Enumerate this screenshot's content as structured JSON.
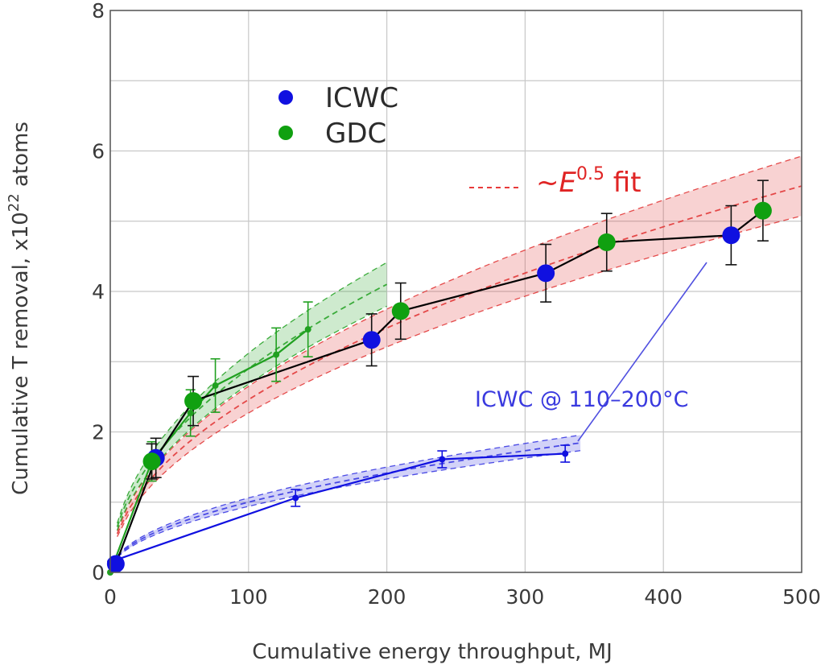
{
  "chart_data": {
    "type": "scatter",
    "xlabel": "Cumulative energy throughput, MJ",
    "ylabel_main": "Cumulative T removal, x10",
    "ylabel_exp": "22",
    "ylabel_unit": " atoms",
    "xlim": [
      0,
      500
    ],
    "ylim": [
      0,
      8
    ],
    "xticks": [
      "0",
      "100",
      "200",
      "300",
      "400",
      "500"
    ],
    "yticks": [
      "0",
      "2",
      "4",
      "6",
      "8"
    ],
    "grid": true,
    "legend_position": "upper-left",
    "legend": [
      {
        "label": "ICWC",
        "color": "#1010e0"
      },
      {
        "label": "GDC",
        "color": "#10a010"
      }
    ],
    "fit_legend": {
      "prefix": "~",
      "symbol": "E",
      "exponent": "0.5",
      "suffix": " fit",
      "color": "#e02424"
    },
    "annotation": "ICWC @ 110–200°C",
    "series": [
      {
        "name": "ICWC",
        "role": "combined-sequence-points",
        "color": "#1010e0",
        "points": [
          {
            "x": 4,
            "y": 0.12,
            "err": 0
          },
          {
            "x": 33,
            "y": 1.63,
            "err": 0.28
          },
          {
            "x": 189,
            "y": 3.31,
            "err": 0.37
          },
          {
            "x": 315,
            "y": 4.26,
            "err": 0.41
          },
          {
            "x": 449,
            "y": 4.8,
            "err": 0.42
          }
        ]
      },
      {
        "name": "GDC",
        "role": "combined-sequence-points",
        "color": "#10a010",
        "points": [
          {
            "x": 30,
            "y": 1.58,
            "err": 0.25
          },
          {
            "x": 60,
            "y": 2.44,
            "err": 0.35
          },
          {
            "x": 210,
            "y": 3.72,
            "err": 0.4
          },
          {
            "x": 359,
            "y": 4.7,
            "err": 0.41
          },
          {
            "x": 472,
            "y": 5.15,
            "err": 0.43
          }
        ]
      },
      {
        "role": "combined-sequence-line",
        "color": "#000000",
        "points": [
          [
            4,
            0.12
          ],
          [
            33,
            1.63
          ],
          [
            60,
            2.44
          ],
          [
            189,
            3.31
          ],
          [
            210,
            3.72
          ],
          [
            315,
            4.26
          ],
          [
            359,
            4.7
          ],
          [
            449,
            4.8
          ],
          [
            472,
            5.15
          ]
        ]
      },
      {
        "role": "gdc-only-sequence",
        "color": "#20a020",
        "points": [
          {
            "x": 0,
            "y": 0,
            "err": 0
          },
          {
            "x": 30,
            "y": 1.58,
            "err": 0.28
          },
          {
            "x": 58,
            "y": 2.27,
            "err": 0.33
          },
          {
            "x": 76,
            "y": 2.66,
            "err": 0.38
          },
          {
            "x": 120,
            "y": 3.1,
            "err": 0.38
          },
          {
            "x": 143,
            "y": 3.46,
            "err": 0.39
          }
        ]
      },
      {
        "role": "icwc-low-temperature-sequence",
        "color": "#1010e0",
        "points": [
          {
            "x": 0,
            "y": 0.15,
            "err": 0
          },
          {
            "x": 134,
            "y": 1.06,
            "err": 0.12
          },
          {
            "x": 240,
            "y": 1.61,
            "err": 0.12
          },
          {
            "x": 329,
            "y": 1.69,
            "err": 0.12
          }
        ]
      }
    ],
    "fits": [
      {
        "color": "#e03030",
        "a": 0.246,
        "band": 0.019,
        "x_range": [
          5,
          500
        ]
      },
      {
        "color": "#20a020",
        "a": 0.29,
        "band": 0.022,
        "x_range": [
          5,
          200
        ]
      },
      {
        "color": "#3030e0",
        "a": 0.1,
        "band": 0.006,
        "x_range": [
          5,
          340
        ]
      }
    ]
  }
}
